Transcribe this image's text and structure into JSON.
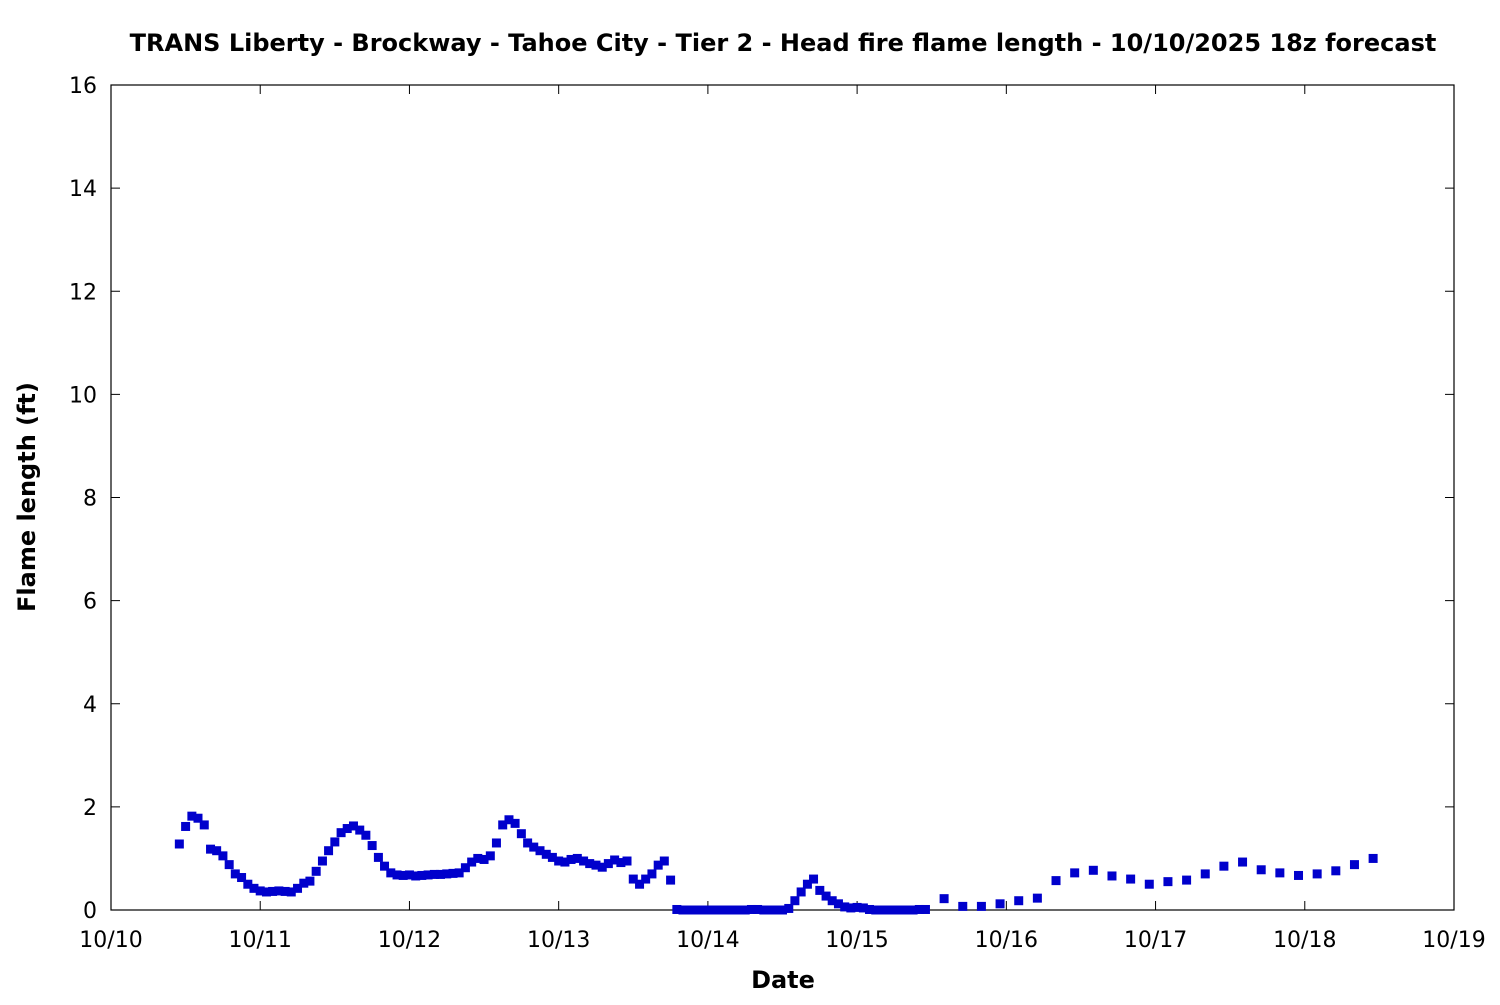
{
  "chart_data": {
    "type": "scatter",
    "title": "TRANS Liberty - Brockway - Tahoe City - Tier 2 - Head fire flame length - 10/10/2025 18z forecast",
    "xlabel": "Date",
    "ylabel": "Flame length (ft)",
    "x_unit": "days since 10/10 00z",
    "xlim": [
      0,
      9
    ],
    "ylim": [
      0,
      16
    ],
    "x_ticks": [
      {
        "value": 0,
        "label": "10/10"
      },
      {
        "value": 1,
        "label": "10/11"
      },
      {
        "value": 2,
        "label": "10/12"
      },
      {
        "value": 3,
        "label": "10/13"
      },
      {
        "value": 4,
        "label": "10/14"
      },
      {
        "value": 5,
        "label": "10/15"
      },
      {
        "value": 6,
        "label": "10/16"
      },
      {
        "value": 7,
        "label": "10/17"
      },
      {
        "value": 8,
        "label": "10/18"
      },
      {
        "value": 9,
        "label": "10/19"
      }
    ],
    "y_ticks": [
      {
        "value": 0,
        "label": "0"
      },
      {
        "value": 2,
        "label": "2"
      },
      {
        "value": 4,
        "label": "4"
      },
      {
        "value": 6,
        "label": "6"
      },
      {
        "value": 8,
        "label": "8"
      },
      {
        "value": 10,
        "label": "10"
      },
      {
        "value": 12,
        "label": "12"
      },
      {
        "value": 14,
        "label": "14"
      },
      {
        "value": 16,
        "label": "16"
      }
    ],
    "grid": false,
    "legend": "none",
    "marker_color": "#0000cc",
    "series": [
      {
        "points": [
          [
            0.458,
            1.28
          ],
          [
            0.5,
            1.62
          ],
          [
            0.542,
            1.82
          ],
          [
            0.583,
            1.78
          ],
          [
            0.625,
            1.65
          ],
          [
            0.667,
            1.18
          ],
          [
            0.708,
            1.15
          ],
          [
            0.75,
            1.05
          ],
          [
            0.792,
            0.88
          ],
          [
            0.833,
            0.7
          ],
          [
            0.875,
            0.63
          ],
          [
            0.917,
            0.5
          ],
          [
            0.958,
            0.42
          ],
          [
            1.0,
            0.37
          ],
          [
            1.042,
            0.35
          ],
          [
            1.083,
            0.36
          ],
          [
            1.125,
            0.37
          ],
          [
            1.167,
            0.36
          ],
          [
            1.208,
            0.35
          ],
          [
            1.25,
            0.42
          ],
          [
            1.292,
            0.52
          ],
          [
            1.333,
            0.56
          ],
          [
            1.375,
            0.75
          ],
          [
            1.417,
            0.95
          ],
          [
            1.458,
            1.15
          ],
          [
            1.5,
            1.32
          ],
          [
            1.542,
            1.5
          ],
          [
            1.583,
            1.58
          ],
          [
            1.625,
            1.63
          ],
          [
            1.667,
            1.55
          ],
          [
            1.708,
            1.45
          ],
          [
            1.75,
            1.25
          ],
          [
            1.792,
            1.02
          ],
          [
            1.833,
            0.85
          ],
          [
            1.875,
            0.72
          ],
          [
            1.917,
            0.68
          ],
          [
            1.958,
            0.67
          ],
          [
            2.0,
            0.68
          ],
          [
            2.042,
            0.66
          ],
          [
            2.083,
            0.67
          ],
          [
            2.125,
            0.68
          ],
          [
            2.167,
            0.69
          ],
          [
            2.208,
            0.69
          ],
          [
            2.25,
            0.7
          ],
          [
            2.292,
            0.71
          ],
          [
            2.333,
            0.72
          ],
          [
            2.375,
            0.82
          ],
          [
            2.417,
            0.93
          ],
          [
            2.458,
            1.0
          ],
          [
            2.5,
            0.98
          ],
          [
            2.542,
            1.05
          ],
          [
            2.583,
            1.3
          ],
          [
            2.625,
            1.65
          ],
          [
            2.667,
            1.75
          ],
          [
            2.708,
            1.68
          ],
          [
            2.75,
            1.48
          ],
          [
            2.792,
            1.3
          ],
          [
            2.833,
            1.22
          ],
          [
            2.875,
            1.15
          ],
          [
            2.917,
            1.08
          ],
          [
            2.958,
            1.02
          ],
          [
            3.0,
            0.95
          ],
          [
            3.042,
            0.93
          ],
          [
            3.083,
            0.98
          ],
          [
            3.125,
            1.0
          ],
          [
            3.167,
            0.95
          ],
          [
            3.208,
            0.9
          ],
          [
            3.25,
            0.87
          ],
          [
            3.292,
            0.83
          ],
          [
            3.333,
            0.9
          ],
          [
            3.375,
            0.97
          ],
          [
            3.417,
            0.92
          ],
          [
            3.458,
            0.95
          ],
          [
            3.5,
            0.6
          ],
          [
            3.542,
            0.5
          ],
          [
            3.583,
            0.6
          ],
          [
            3.625,
            0.7
          ],
          [
            3.667,
            0.87
          ],
          [
            3.708,
            0.95
          ],
          [
            3.75,
            0.58
          ],
          [
            3.792,
            0.01
          ],
          [
            3.833,
            0.0
          ],
          [
            3.875,
            0.0
          ],
          [
            3.917,
            0.0
          ],
          [
            3.958,
            0.0
          ],
          [
            4.0,
            0.0
          ],
          [
            4.042,
            0.0
          ],
          [
            4.083,
            0.0
          ],
          [
            4.125,
            0.0
          ],
          [
            4.167,
            0.0
          ],
          [
            4.208,
            0.0
          ],
          [
            4.25,
            0.0
          ],
          [
            4.292,
            0.01
          ],
          [
            4.333,
            0.01
          ],
          [
            4.375,
            0.0
          ],
          [
            4.417,
            0.0
          ],
          [
            4.458,
            0.0
          ],
          [
            4.5,
            0.0
          ],
          [
            4.542,
            0.03
          ],
          [
            4.583,
            0.18
          ],
          [
            4.625,
            0.35
          ],
          [
            4.667,
            0.5
          ],
          [
            4.708,
            0.6
          ],
          [
            4.75,
            0.38
          ],
          [
            4.792,
            0.27
          ],
          [
            4.833,
            0.18
          ],
          [
            4.875,
            0.12
          ],
          [
            4.917,
            0.06
          ],
          [
            4.958,
            0.04
          ],
          [
            5.0,
            0.05
          ],
          [
            5.042,
            0.04
          ],
          [
            5.083,
            0.01
          ],
          [
            5.125,
            0.0
          ],
          [
            5.167,
            0.0
          ],
          [
            5.208,
            0.0
          ],
          [
            5.25,
            0.0
          ],
          [
            5.292,
            0.0
          ],
          [
            5.333,
            0.0
          ],
          [
            5.375,
            0.0
          ],
          [
            5.417,
            0.01
          ],
          [
            5.458,
            0.01
          ],
          [
            5.583,
            0.22
          ],
          [
            5.708,
            0.07
          ],
          [
            5.833,
            0.07
          ],
          [
            5.958,
            0.12
          ],
          [
            6.083,
            0.18
          ],
          [
            6.208,
            0.23
          ],
          [
            6.333,
            0.57
          ],
          [
            6.458,
            0.72
          ],
          [
            6.583,
            0.77
          ],
          [
            6.708,
            0.66
          ],
          [
            6.833,
            0.6
          ],
          [
            6.958,
            0.5
          ],
          [
            7.083,
            0.55
          ],
          [
            7.208,
            0.58
          ],
          [
            7.333,
            0.7
          ],
          [
            7.458,
            0.85
          ],
          [
            7.583,
            0.93
          ],
          [
            7.708,
            0.78
          ],
          [
            7.833,
            0.72
          ],
          [
            7.958,
            0.67
          ],
          [
            8.083,
            0.7
          ],
          [
            8.208,
            0.76
          ],
          [
            8.333,
            0.88
          ],
          [
            8.458,
            1.0
          ]
        ]
      }
    ]
  }
}
